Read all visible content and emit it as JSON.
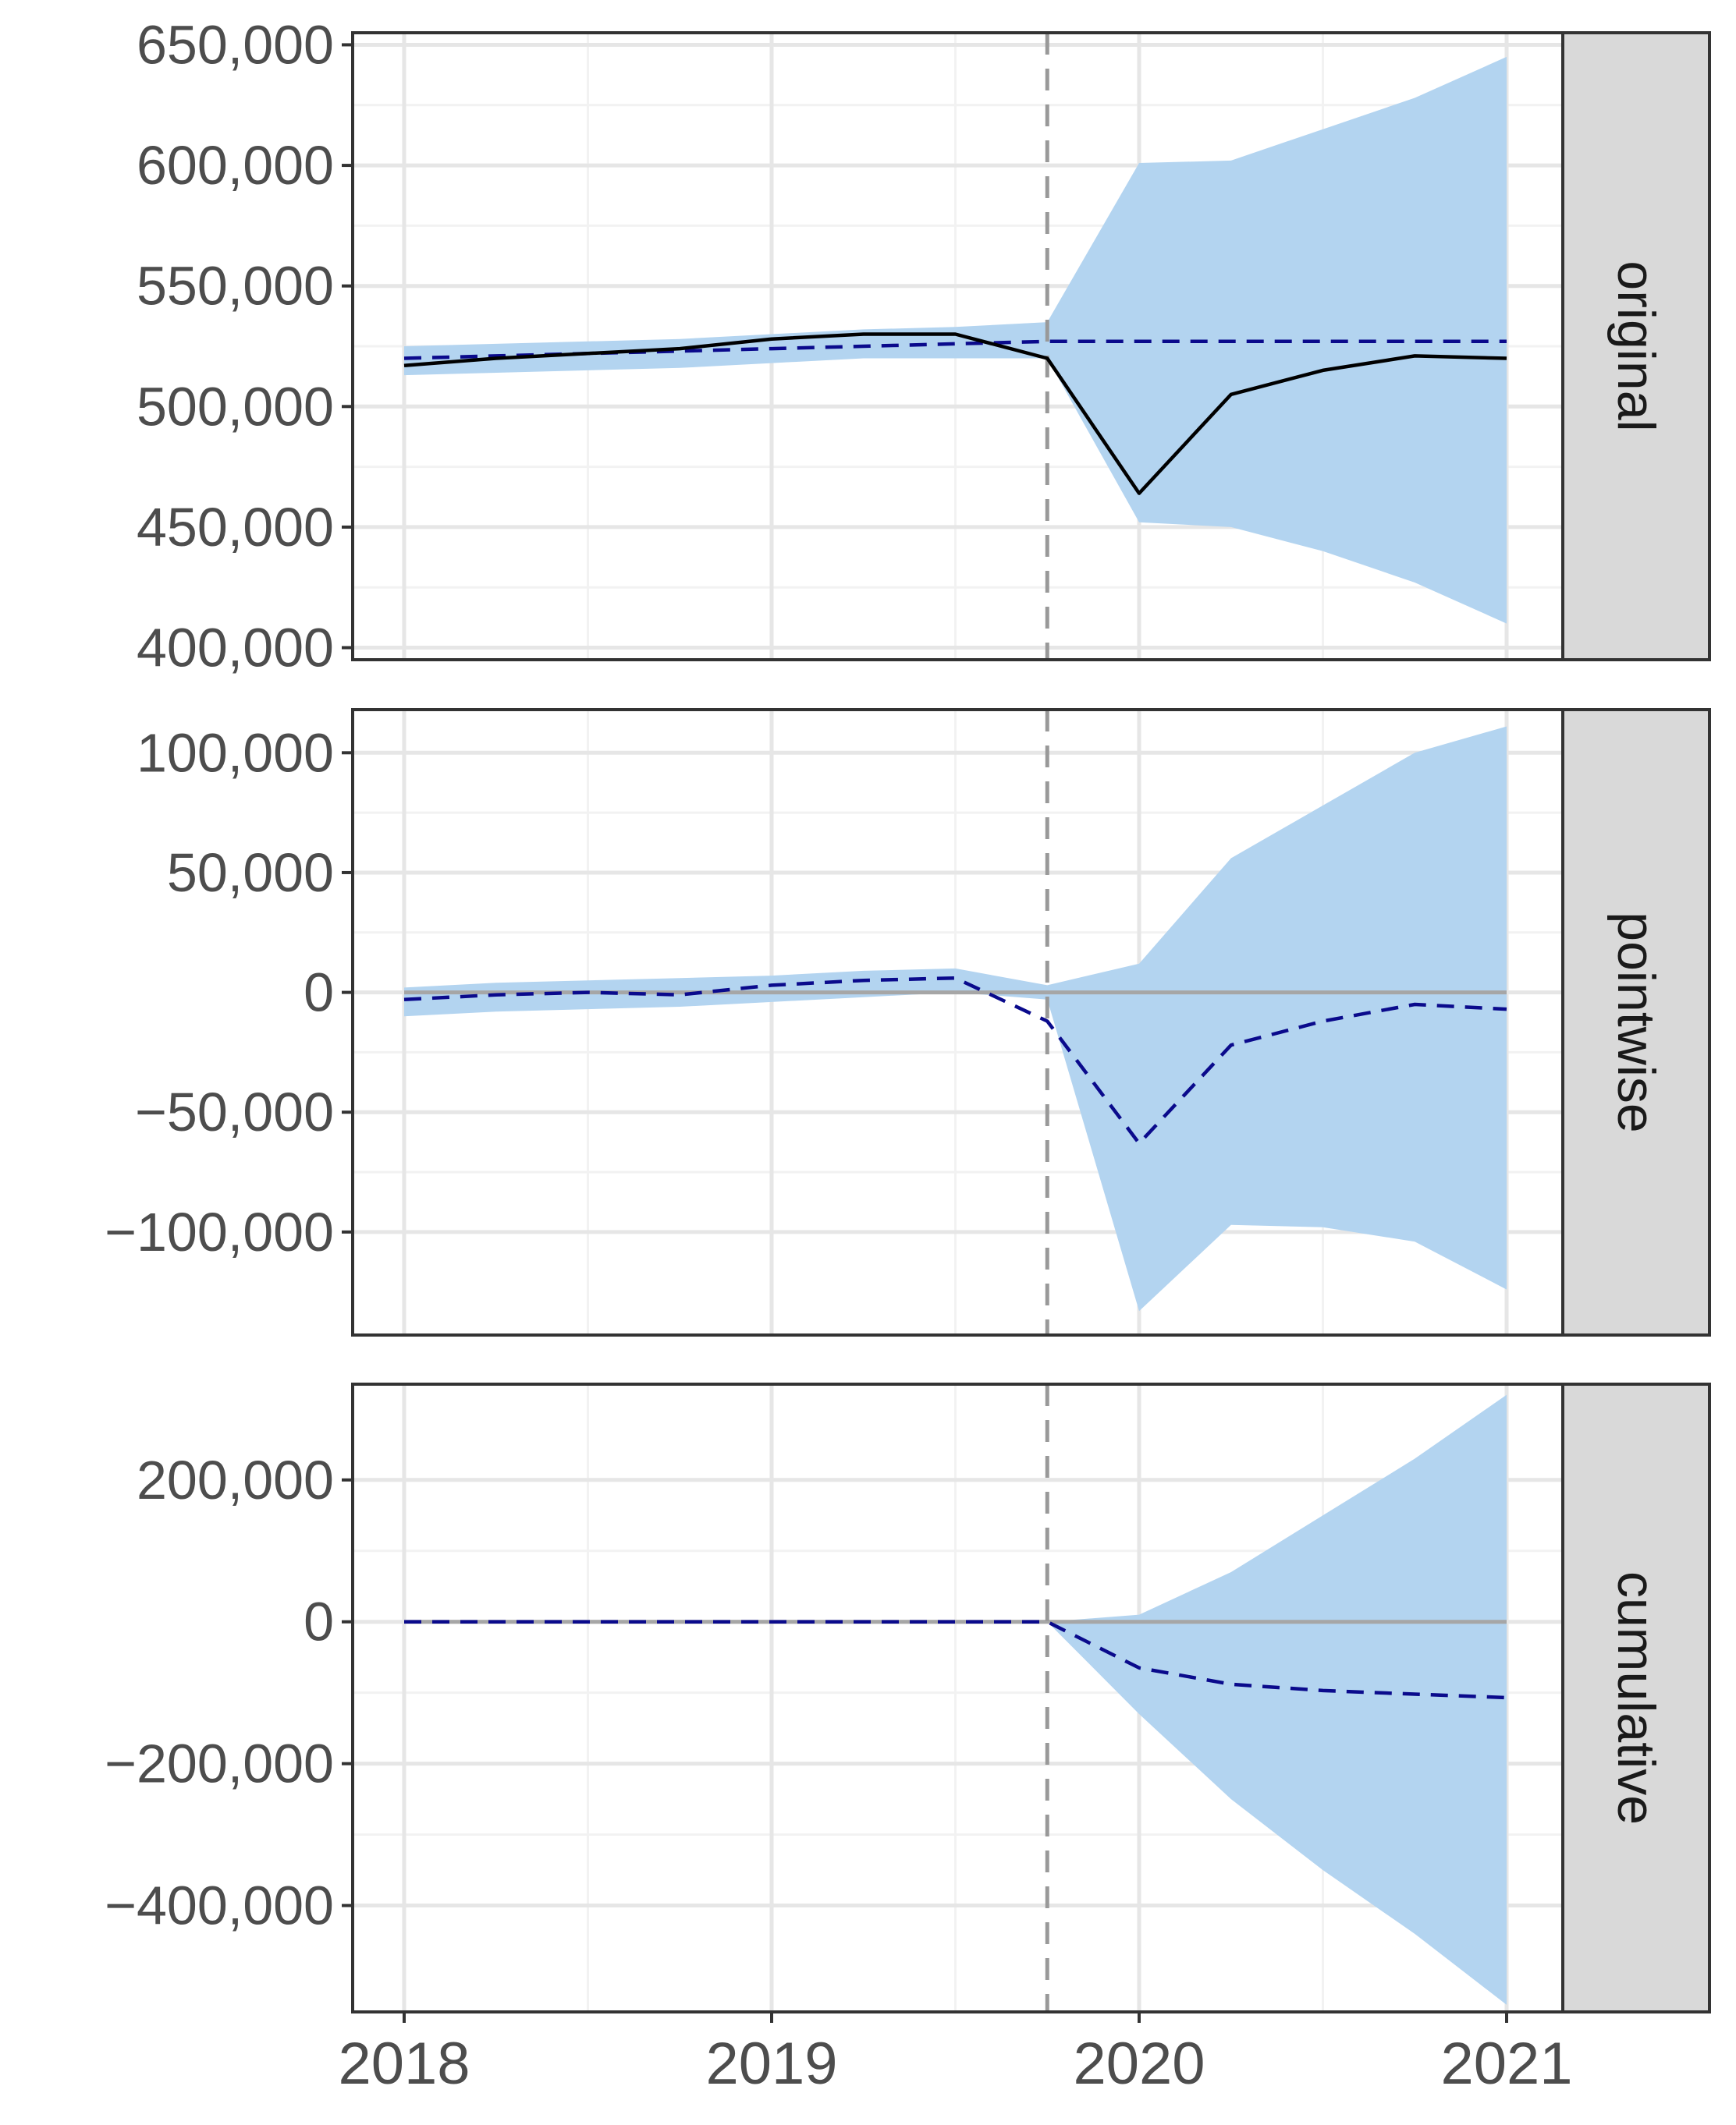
{
  "chart_data": {
    "type": "line",
    "facet_layout": "vertical",
    "x_ticks": [
      "2018",
      "2019",
      "2020",
      "2021"
    ],
    "xlim": [
      2018,
      2021.25
    ],
    "intervention_x": 2019.75,
    "colors": {
      "band": "#b3d4f0",
      "prediction": "#0a0a8c",
      "actual": "#000000",
      "intervention": "#999999",
      "zero_line": "#a6a6a6",
      "grid_major": "#e6e6e6",
      "grid_minor": "#f2f2f2",
      "strip": "#d9d9d9",
      "frame": "#333333"
    },
    "panels": [
      {
        "label": "original",
        "ylim": [
          395000,
          655000
        ],
        "y_ticks": [
          400000,
          450000,
          500000,
          550000,
          600000,
          650000
        ],
        "y_tick_labels": [
          "400,000",
          "450,000",
          "500,000",
          "550,000",
          "600,000",
          "650,000"
        ],
        "zero_line": false,
        "series": [
          {
            "role": "ci_band",
            "x": [
              2018,
              2018.25,
              2018.5,
              2018.75,
              2019,
              2019.25,
              2019.5,
              2019.75,
              2020,
              2020.25,
              2020.5,
              2020.75,
              2021
            ],
            "lower": [
              513000,
              514000,
              515000,
              516000,
              518000,
              520000,
              520000,
              520000,
              452000,
              450000,
              440000,
              427000,
              410000
            ],
            "upper": [
              525000,
              526000,
              527000,
              528000,
              530000,
              532000,
              533000,
              535000,
              601000,
              602000,
              615000,
              628000,
              645000
            ]
          },
          {
            "role": "prediction",
            "style": "dashed",
            "x": [
              2018,
              2018.25,
              2018.5,
              2018.75,
              2019,
              2019.25,
              2019.5,
              2019.75,
              2020,
              2020.25,
              2020.5,
              2020.75,
              2021
            ],
            "y": [
              520000,
              521000,
              522000,
              523000,
              524000,
              525000,
              526000,
              527000,
              527000,
              527000,
              527000,
              527000,
              527000
            ]
          },
          {
            "role": "actual",
            "style": "solid",
            "x": [
              2018,
              2018.25,
              2018.5,
              2018.75,
              2019,
              2019.25,
              2019.5,
              2019.75,
              2020,
              2020.25,
              2020.5,
              2020.75,
              2021
            ],
            "y": [
              517000,
              520000,
              522000,
              524000,
              528000,
              530000,
              530000,
              520000,
              464000,
              505000,
              515000,
              521000,
              520000
            ]
          }
        ]
      },
      {
        "label": "pointwise",
        "ylim": [
          -143000,
          118000
        ],
        "y_ticks": [
          -100000,
          -50000,
          0,
          50000,
          100000
        ],
        "y_tick_labels": [
          "−100,000",
          "−50,000",
          "0",
          "50,000",
          "100,000"
        ],
        "zero_line": true,
        "series": [
          {
            "role": "ci_band",
            "x": [
              2018,
              2018.25,
              2018.5,
              2018.75,
              2019,
              2019.25,
              2019.5,
              2019.75,
              2020,
              2020.25,
              2020.5,
              2020.75,
              2021
            ],
            "lower": [
              -10000,
              -8000,
              -7000,
              -6000,
              -4000,
              -2000,
              0,
              -3000,
              -133000,
              -97000,
              -98000,
              -104000,
              -124000
            ],
            "upper": [
              2000,
              4000,
              5000,
              6000,
              7000,
              9000,
              10000,
              3000,
              12000,
              56000,
              78000,
              100000,
              111000
            ]
          },
          {
            "role": "prediction",
            "style": "dashed",
            "x": [
              2018,
              2018.25,
              2018.5,
              2018.75,
              2019,
              2019.25,
              2019.5,
              2019.75,
              2020,
              2020.25,
              2020.5,
              2020.75,
              2021
            ],
            "y": [
              -3000,
              -1000,
              0,
              -1000,
              3000,
              5000,
              6000,
              -12000,
              -63000,
              -22000,
              -12000,
              -5000,
              -7000
            ]
          }
        ]
      },
      {
        "label": "cumulative",
        "ylim": [
          -550000,
          335000
        ],
        "y_ticks": [
          -400000,
          -200000,
          0,
          200000
        ],
        "y_tick_labels": [
          "−400,000",
          "−200,000",
          "0",
          "200,000"
        ],
        "zero_line": true,
        "series": [
          {
            "role": "ci_band",
            "x": [
              2018,
              2018.25,
              2018.5,
              2018.75,
              2019,
              2019.25,
              2019.5,
              2019.75,
              2020,
              2020.25,
              2020.5,
              2020.75,
              2021
            ],
            "lower": [
              0,
              0,
              0,
              0,
              0,
              0,
              0,
              0,
              -130000,
              -250000,
              -350000,
              -440000,
              -540000
            ],
            "upper": [
              0,
              0,
              0,
              0,
              0,
              0,
              0,
              0,
              10000,
              70000,
              150000,
              230000,
              320000
            ]
          },
          {
            "role": "prediction",
            "style": "dashed",
            "x": [
              2018,
              2018.25,
              2018.5,
              2018.75,
              2019,
              2019.25,
              2019.5,
              2019.75,
              2020,
              2020.25,
              2020.5,
              2020.75,
              2021
            ],
            "y": [
              0,
              0,
              0,
              0,
              0,
              0,
              0,
              0,
              -65000,
              -88000,
              -97000,
              -102000,
              -107000
            ]
          }
        ]
      }
    ]
  }
}
